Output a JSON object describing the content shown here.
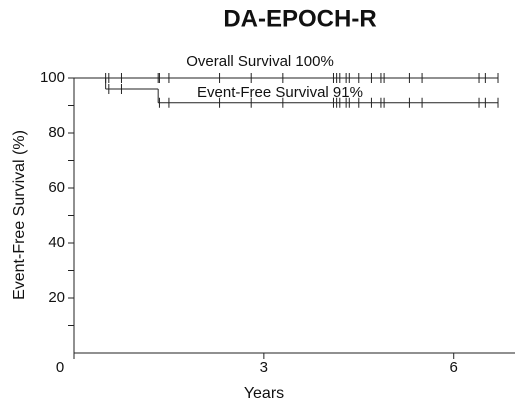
{
  "chart_data": {
    "type": "step",
    "title": "DA-EPOCH-R",
    "x_label": "Years",
    "y_label": "Event-Free Survival (%)",
    "xlim": [
      0,
      7
    ],
    "xticks": [
      0,
      3,
      6
    ],
    "ylim": [
      0,
      100
    ],
    "yticks": [
      20,
      40,
      60,
      80,
      100
    ],
    "yminor": [
      10,
      30,
      50,
      70,
      90
    ],
    "series": [
      {
        "name": "Overall Survival 100%",
        "color": "#222222",
        "x": [
          0,
          6.7
        ],
        "values": [
          100,
          100
        ],
        "censored": [
          0.5,
          0.55,
          0.75,
          1.33,
          1.35,
          1.5,
          2.3,
          2.8,
          3.3,
          4.1,
          4.15,
          4.2,
          4.3,
          4.35,
          4.5,
          4.7,
          4.85,
          4.9,
          5.3,
          5.5,
          6.4,
          6.5,
          6.7
        ]
      },
      {
        "name": "Event-Free Survival 91%",
        "color": "#222222",
        "x": [
          0,
          0.5,
          1.33,
          6.7
        ],
        "values": [
          100,
          96,
          91,
          91
        ],
        "censored": [
          0.55,
          0.75,
          1.35,
          1.5,
          2.3,
          2.8,
          3.3,
          4.1,
          4.15,
          4.2,
          4.3,
          4.35,
          4.5,
          4.7,
          4.85,
          4.9,
          5.3,
          5.5,
          6.4,
          6.5,
          6.7
        ]
      }
    ]
  }
}
